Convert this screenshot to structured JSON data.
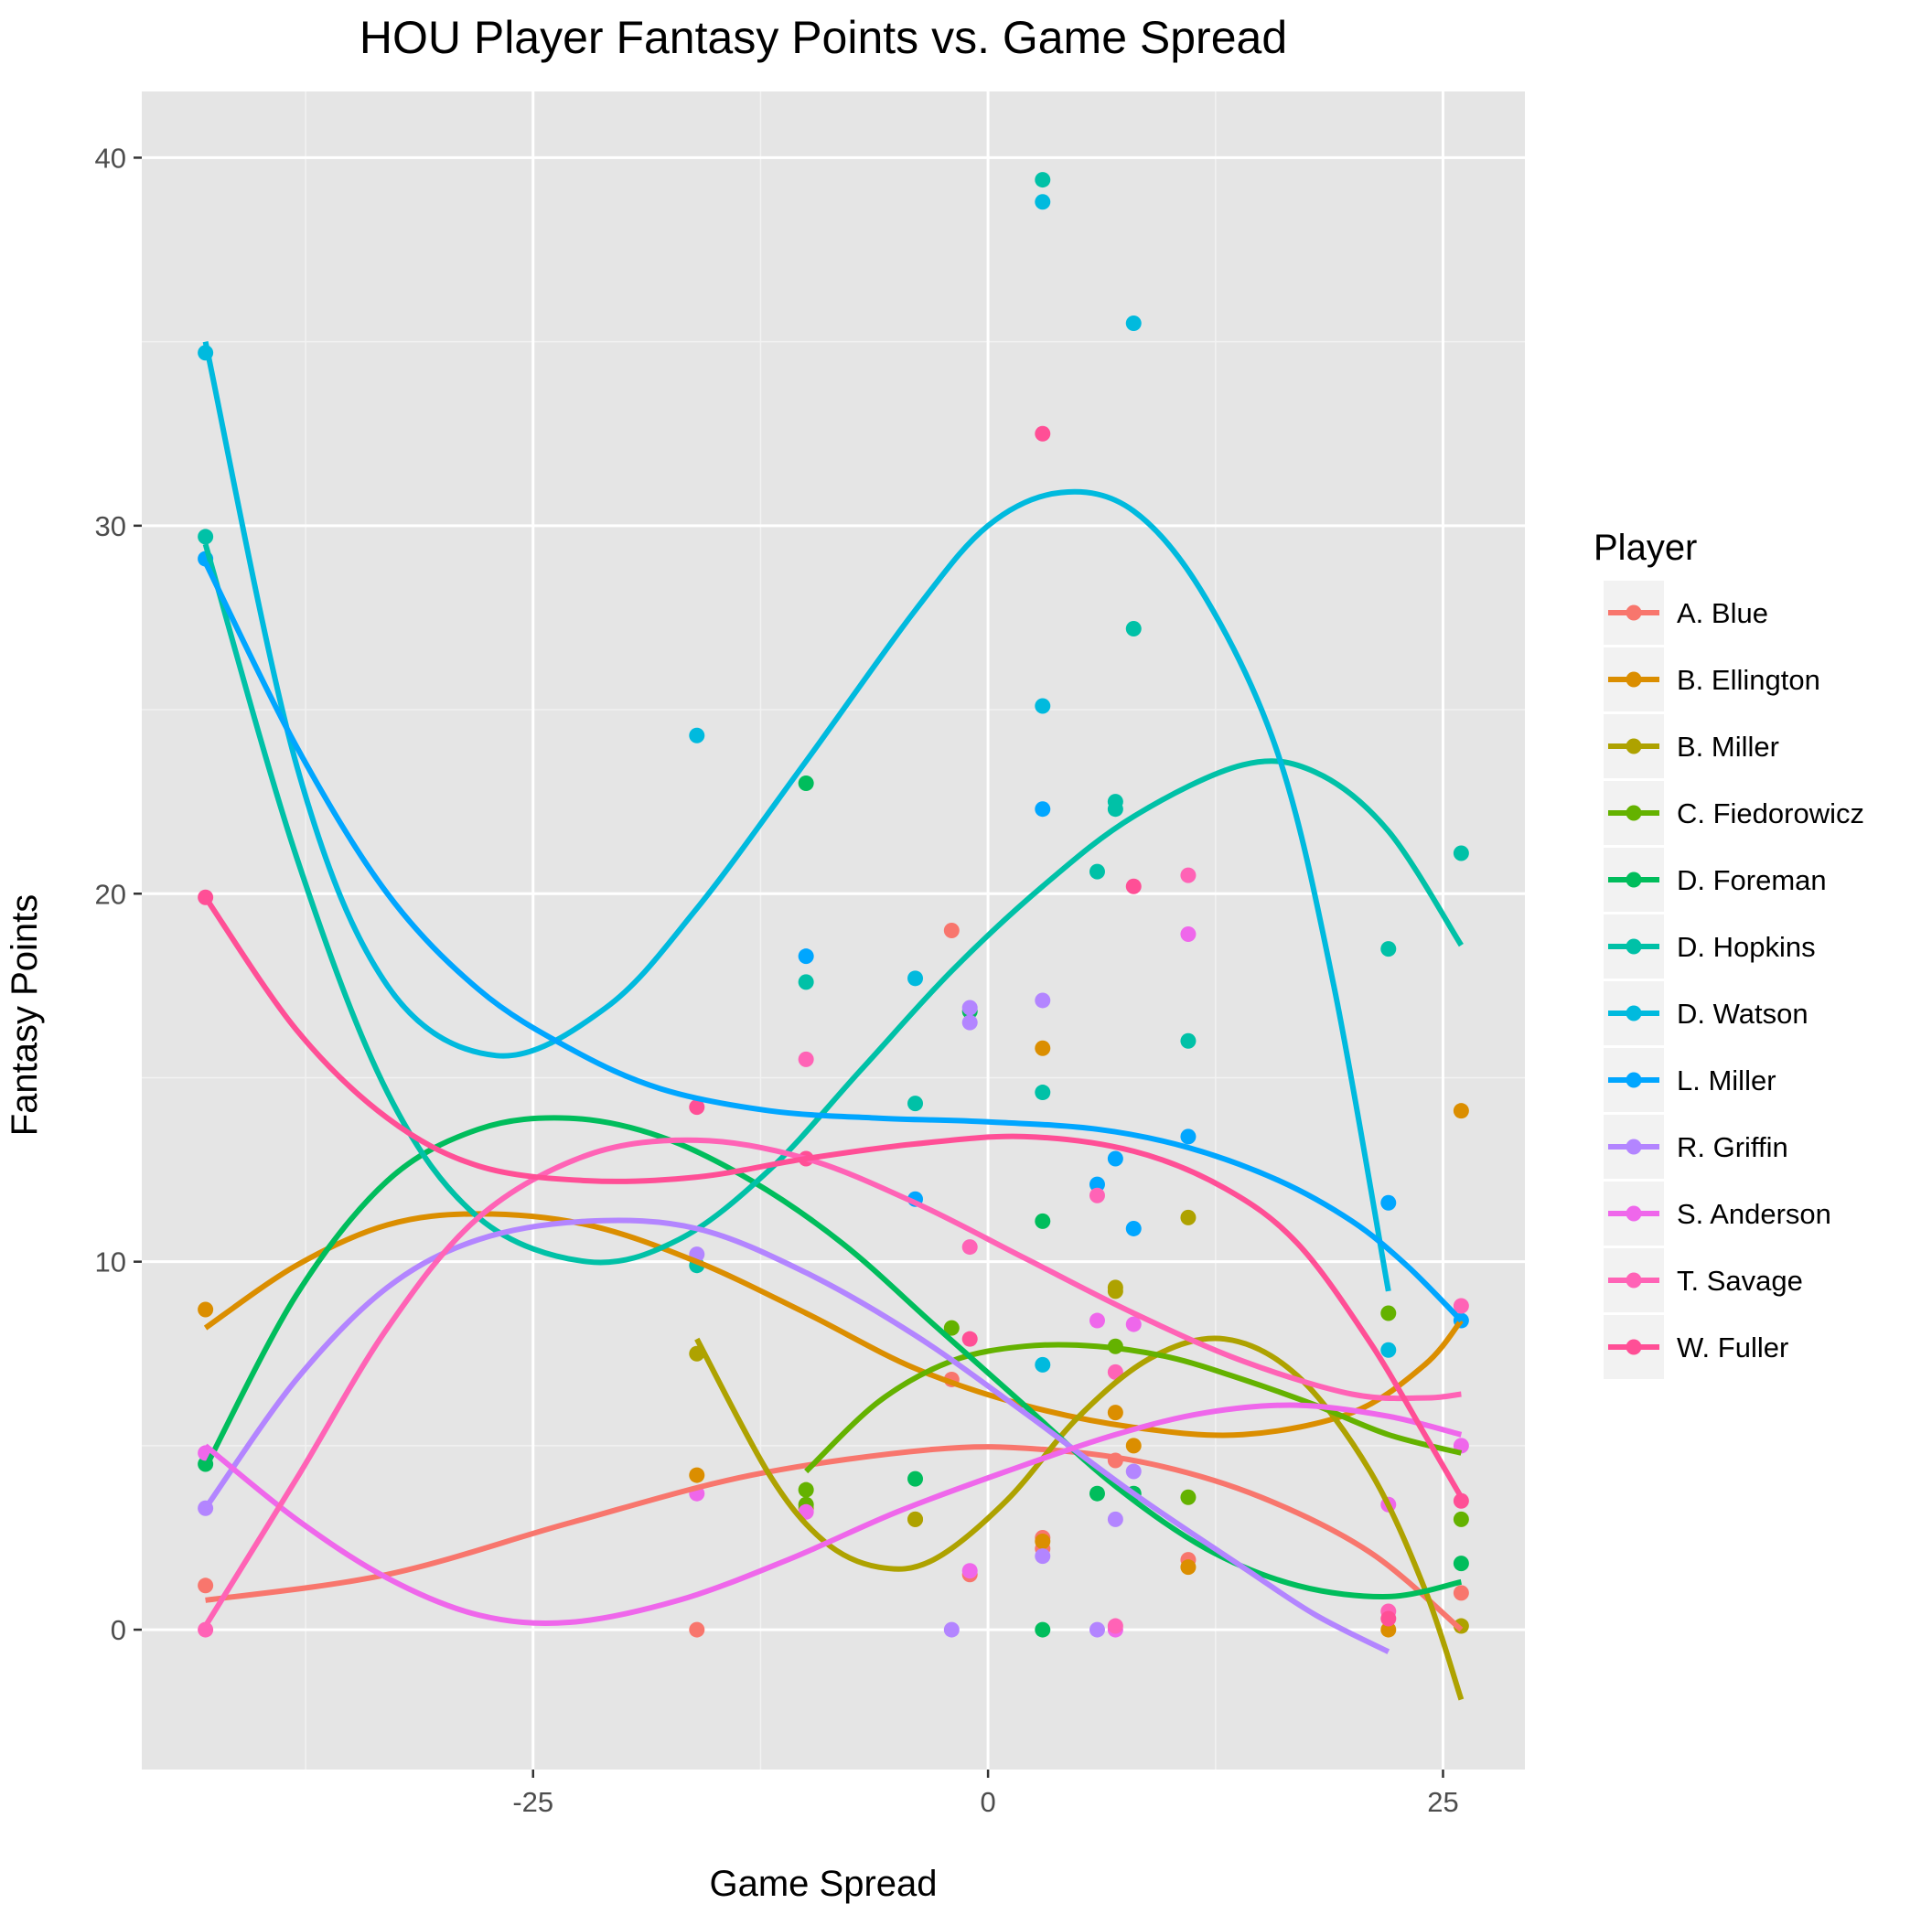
{
  "chart_data": {
    "type": "scatter",
    "title": "HOU Player Fantasy Points vs. Game Spread",
    "xlabel": "Game Spread",
    "ylabel": "Fantasy Points",
    "xlim": [
      -46.5,
      29.5
    ],
    "ylim": [
      -3.8,
      41.8
    ],
    "x_ticks": [
      -25,
      0,
      25
    ],
    "x_tick_labels": [
      "-25",
      "0",
      "25"
    ],
    "y_ticks": [
      0,
      10,
      20,
      30,
      40
    ],
    "y_tick_labels": [
      "0",
      "10",
      "20",
      "30",
      "40"
    ],
    "grid": true,
    "legend_title": "Player",
    "legend_position": "right",
    "smoother": "loess",
    "series": [
      {
        "name": "A. Blue",
        "color": "#F8766D",
        "points": [
          [
            -43,
            1.2
          ],
          [
            -16,
            0
          ],
          [
            -2,
            19
          ],
          [
            -2,
            6.8
          ],
          [
            -1,
            1.5
          ],
          [
            3,
            2.5
          ],
          [
            3,
            2.2
          ],
          [
            7,
            4.6
          ],
          [
            11,
            1.9
          ],
          [
            26,
            1
          ]
        ],
        "curve": [
          [
            -43,
            0.8
          ],
          [
            -33,
            1.5
          ],
          [
            -23,
            2.9
          ],
          [
            -13,
            4.2
          ],
          [
            -3,
            4.9
          ],
          [
            3,
            4.9
          ],
          [
            9,
            4.5
          ],
          [
            15,
            3.6
          ],
          [
            21,
            2.1
          ],
          [
            26,
            0
          ]
        ]
      },
      {
        "name": "B. Ellington",
        "color": "#DB8E00",
        "points": [
          [
            -43,
            8.7
          ],
          [
            -16,
            4.2
          ],
          [
            -4,
            3
          ],
          [
            3,
            15.8
          ],
          [
            3,
            2.4
          ],
          [
            7,
            5.9
          ],
          [
            8,
            5
          ],
          [
            11,
            1.7
          ],
          [
            22,
            0
          ],
          [
            26,
            14.1
          ]
        ],
        "curve": [
          [
            -43,
            8.2
          ],
          [
            -38,
            9.9
          ],
          [
            -33,
            11
          ],
          [
            -28,
            11.3
          ],
          [
            -22,
            11
          ],
          [
            -16,
            10
          ],
          [
            -10,
            8.6
          ],
          [
            -4,
            7.1
          ],
          [
            2,
            6.1
          ],
          [
            8,
            5.5
          ],
          [
            14,
            5.3
          ],
          [
            20,
            5.9
          ],
          [
            24,
            7.2
          ],
          [
            26,
            8.4
          ]
        ]
      },
      {
        "name": "B. Miller",
        "color": "#AEA200",
        "points": [
          [
            -16,
            7.5
          ],
          [
            -10,
            3.3
          ],
          [
            -4,
            3
          ],
          [
            7,
            9.3
          ],
          [
            7,
            9.2
          ],
          [
            11,
            11.2
          ],
          [
            26,
            0.1
          ]
        ],
        "curve": [
          [
            -16,
            7.9
          ],
          [
            -12,
            4.2
          ],
          [
            -9,
            2.4
          ],
          [
            -6,
            1.7
          ],
          [
            -3,
            1.9
          ],
          [
            1,
            3.5
          ],
          [
            5,
            5.8
          ],
          [
            9,
            7.4
          ],
          [
            13,
            7.9
          ],
          [
            17,
            6.9
          ],
          [
            21,
            4.3
          ],
          [
            24,
            1.1
          ],
          [
            26,
            -1.9
          ]
        ]
      },
      {
        "name": "C. Fiedorowicz",
        "color": "#64B200",
        "points": [
          [
            -10,
            3.8
          ],
          [
            -10,
            3.4
          ],
          [
            -2,
            8.2
          ],
          [
            7,
            7.7
          ],
          [
            11,
            3.6
          ],
          [
            22,
            8.6
          ],
          [
            26,
            3
          ]
        ],
        "curve": [
          [
            -10,
            4.3
          ],
          [
            -6,
            6.2
          ],
          [
            -2,
            7.3
          ],
          [
            2,
            7.7
          ],
          [
            6,
            7.7
          ],
          [
            10,
            7.4
          ],
          [
            14,
            6.8
          ],
          [
            18,
            6.1
          ],
          [
            22,
            5.3
          ],
          [
            26,
            4.8
          ]
        ]
      },
      {
        "name": "D. Foreman",
        "color": "#00BD5C",
        "points": [
          [
            -43,
            4.5
          ],
          [
            -10,
            23
          ],
          [
            -4,
            4.1
          ],
          [
            -1,
            16.8
          ],
          [
            3,
            11.1
          ],
          [
            3,
            0
          ],
          [
            6,
            3.7
          ],
          [
            8,
            3.7
          ],
          [
            26,
            1.8
          ]
        ],
        "curve": [
          [
            -43,
            4.4
          ],
          [
            -38,
            9.1
          ],
          [
            -33,
            12.2
          ],
          [
            -28,
            13.6
          ],
          [
            -23,
            13.9
          ],
          [
            -18,
            13.4
          ],
          [
            -13,
            12.2
          ],
          [
            -8,
            10.5
          ],
          [
            -3,
            8.3
          ],
          [
            2,
            6.1
          ],
          [
            7,
            3.9
          ],
          [
            12,
            2.2
          ],
          [
            17,
            1.2
          ],
          [
            22,
            0.9
          ],
          [
            26,
            1.3
          ]
        ]
      },
      {
        "name": "D. Hopkins",
        "color": "#00C1A7",
        "points": [
          [
            -43,
            29.7
          ],
          [
            -16,
            9.9
          ],
          [
            -10,
            17.6
          ],
          [
            -4,
            14.3
          ],
          [
            3,
            39.4
          ],
          [
            3,
            14.6
          ],
          [
            6,
            20.6
          ],
          [
            7,
            22.5
          ],
          [
            7,
            22.3
          ],
          [
            8,
            27.2
          ],
          [
            11,
            16
          ],
          [
            22,
            18.5
          ],
          [
            26,
            21.1
          ]
        ],
        "curve": [
          [
            -43,
            29.5
          ],
          [
            -38,
            21
          ],
          [
            -33,
            14.6
          ],
          [
            -28,
            11.2
          ],
          [
            -22,
            10
          ],
          [
            -17,
            10.6
          ],
          [
            -12,
            12.5
          ],
          [
            -7,
            15.2
          ],
          [
            -2,
            17.9
          ],
          [
            3,
            20.2
          ],
          [
            8,
            22.1
          ],
          [
            14,
            23.5
          ],
          [
            18,
            23.3
          ],
          [
            22,
            21.7
          ],
          [
            26,
            18.6
          ]
        ]
      },
      {
        "name": "D. Watson",
        "color": "#00BADE",
        "points": [
          [
            -43,
            34.7
          ],
          [
            -16,
            24.3
          ],
          [
            -4,
            17.7
          ],
          [
            3,
            38.8
          ],
          [
            3,
            25.1
          ],
          [
            3,
            7.2
          ],
          [
            8,
            35.5
          ],
          [
            22,
            7.6
          ]
        ],
        "curve": [
          [
            -43,
            35
          ],
          [
            -38,
            23.5
          ],
          [
            -33,
            17.5
          ],
          [
            -27,
            15.6
          ],
          [
            -21,
            16.9
          ],
          [
            -16,
            19.6
          ],
          [
            -10,
            23.6
          ],
          [
            -4,
            27.7
          ],
          [
            0,
            30
          ],
          [
            4,
            30.9
          ],
          [
            8,
            30.4
          ],
          [
            12,
            28
          ],
          [
            16,
            23.7
          ],
          [
            19,
            17.5
          ],
          [
            22,
            9.2
          ]
        ]
      },
      {
        "name": "L. Miller",
        "color": "#00A6FF",
        "points": [
          [
            -43,
            29.1
          ],
          [
            -10,
            18.3
          ],
          [
            -4,
            11.7
          ],
          [
            3,
            22.3
          ],
          [
            6,
            12.1
          ],
          [
            7,
            12.8
          ],
          [
            8,
            10.9
          ],
          [
            11,
            13.4
          ],
          [
            22,
            11.6
          ],
          [
            26,
            8.4
          ]
        ],
        "curve": [
          [
            -43,
            29
          ],
          [
            -38,
            24
          ],
          [
            -33,
            20
          ],
          [
            -28,
            17.4
          ],
          [
            -23,
            15.8
          ],
          [
            -18,
            14.7
          ],
          [
            -12,
            14.1
          ],
          [
            -6,
            13.9
          ],
          [
            0,
            13.8
          ],
          [
            6,
            13.6
          ],
          [
            11,
            13.1
          ],
          [
            16,
            12.2
          ],
          [
            20,
            11.1
          ],
          [
            23,
            9.9
          ],
          [
            26,
            8.4
          ]
        ]
      },
      {
        "name": "R. Griffin",
        "color": "#B385FF",
        "points": [
          [
            -43,
            3.3
          ],
          [
            -16,
            10.2
          ],
          [
            -2,
            0
          ],
          [
            -1,
            16.9
          ],
          [
            -1,
            16.5
          ],
          [
            3,
            17.1
          ],
          [
            3,
            2
          ],
          [
            6,
            0
          ],
          [
            7,
            3
          ],
          [
            8,
            4.3
          ]
        ],
        "curve": [
          [
            -43,
            3.3
          ],
          [
            -38,
            6.8
          ],
          [
            -33,
            9.3
          ],
          [
            -28,
            10.6
          ],
          [
            -22,
            11.1
          ],
          [
            -16,
            10.9
          ],
          [
            -10,
            9.7
          ],
          [
            -4,
            8
          ],
          [
            2,
            5.9
          ],
          [
            8,
            3.7
          ],
          [
            14,
            1.7
          ],
          [
            18,
            0.4
          ],
          [
            22,
            -0.6
          ]
        ]
      },
      {
        "name": "S. Anderson",
        "color": "#EF67EB",
        "points": [
          [
            -43,
            4.8
          ],
          [
            -16,
            3.7
          ],
          [
            -10,
            3.2
          ],
          [
            -1,
            1.6
          ],
          [
            6,
            8.4
          ],
          [
            7,
            0
          ],
          [
            8,
            8.3
          ],
          [
            11,
            18.9
          ],
          [
            22,
            3.4
          ],
          [
            26,
            5
          ]
        ],
        "curve": [
          [
            -43,
            5
          ],
          [
            -38,
            3
          ],
          [
            -33,
            1.4
          ],
          [
            -28,
            0.4
          ],
          [
            -23,
            0.2
          ],
          [
            -17,
            0.8
          ],
          [
            -11,
            1.9
          ],
          [
            -5,
            3.2
          ],
          [
            1,
            4.3
          ],
          [
            7,
            5.3
          ],
          [
            12,
            5.9
          ],
          [
            17,
            6.1
          ],
          [
            22,
            5.8
          ],
          [
            26,
            5.3
          ]
        ]
      },
      {
        "name": "T. Savage",
        "color": "#FF63B6",
        "points": [
          [
            -43,
            0
          ],
          [
            -10,
            15.5
          ],
          [
            -1,
            10.4
          ],
          [
            6,
            11.8
          ],
          [
            7,
            7
          ],
          [
            7,
            0.1
          ],
          [
            11,
            20.5
          ],
          [
            22,
            0.5
          ],
          [
            26,
            8.8
          ]
        ],
        "curve": [
          [
            -43,
            0.1
          ],
          [
            -38,
            4.1
          ],
          [
            -33,
            8.2
          ],
          [
            -28,
            11.2
          ],
          [
            -22,
            12.9
          ],
          [
            -16,
            13.3
          ],
          [
            -10,
            12.8
          ],
          [
            -4,
            11.6
          ],
          [
            2,
            10.1
          ],
          [
            8,
            8.6
          ],
          [
            14,
            7.3
          ],
          [
            20,
            6.4
          ],
          [
            24,
            6.3
          ],
          [
            26,
            6.4
          ]
        ]
      },
      {
        "name": "W. Fuller",
        "color": "#FF4F96",
        "points": [
          [
            -43,
            19.9
          ],
          [
            -16,
            14.2
          ],
          [
            -10,
            12.8
          ],
          [
            -1,
            7.9
          ],
          [
            3,
            32.5
          ],
          [
            8,
            20.2
          ],
          [
            22,
            0.3
          ],
          [
            26,
            3.5
          ]
        ],
        "curve": [
          [
            -43,
            19.9
          ],
          [
            -38,
            16.3
          ],
          [
            -33,
            13.9
          ],
          [
            -28,
            12.6
          ],
          [
            -22,
            12.2
          ],
          [
            -16,
            12.3
          ],
          [
            -10,
            12.8
          ],
          [
            -4,
            13.2
          ],
          [
            2,
            13.4
          ],
          [
            8,
            13
          ],
          [
            13,
            12
          ],
          [
            17,
            10.5
          ],
          [
            21,
            7.8
          ],
          [
            24,
            5.3
          ],
          [
            26,
            3.6
          ]
        ]
      }
    ]
  }
}
